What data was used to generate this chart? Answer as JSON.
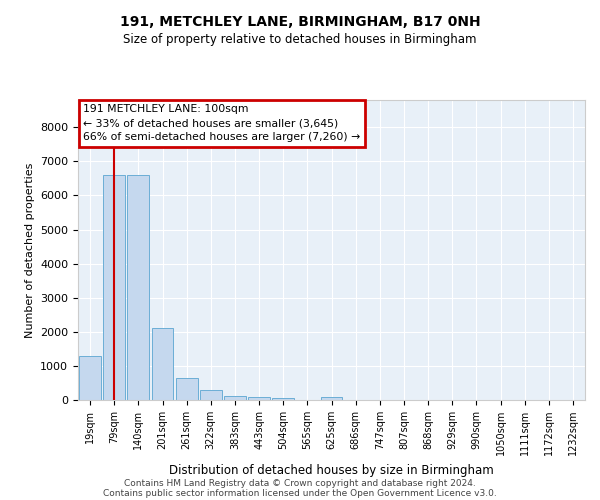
{
  "title1": "191, METCHLEY LANE, BIRMINGHAM, B17 0NH",
  "title2": "Size of property relative to detached houses in Birmingham",
  "xlabel": "Distribution of detached houses by size in Birmingham",
  "ylabel": "Number of detached properties",
  "bins": [
    "19sqm",
    "79sqm",
    "140sqm",
    "201sqm",
    "261sqm",
    "322sqm",
    "383sqm",
    "443sqm",
    "504sqm",
    "565sqm",
    "625sqm",
    "686sqm",
    "747sqm",
    "807sqm",
    "868sqm",
    "929sqm",
    "990sqm",
    "1050sqm",
    "1111sqm",
    "1172sqm",
    "1232sqm"
  ],
  "values": [
    1300,
    6600,
    6600,
    2100,
    650,
    280,
    130,
    80,
    70,
    0,
    80,
    0,
    0,
    0,
    0,
    0,
    0,
    0,
    0,
    0,
    0
  ],
  "bar_color": "#c5d8ee",
  "bar_edge_color": "#6baed6",
  "vline_color": "#cc0000",
  "vline_x": 1.0,
  "ylim": [
    0,
    8800
  ],
  "yticks": [
    0,
    1000,
    2000,
    3000,
    4000,
    5000,
    6000,
    7000,
    8000
  ],
  "annotation_text": "191 METCHLEY LANE: 100sqm\n← 33% of detached houses are smaller (3,645)\n66% of semi-detached houses are larger (7,260) →",
  "annotation_box_color": "#cc0000",
  "bg_color": "#e8f0f8",
  "grid_color": "#ffffff",
  "footnote1": "Contains HM Land Registry data © Crown copyright and database right 2024.",
  "footnote2": "Contains public sector information licensed under the Open Government Licence v3.0."
}
